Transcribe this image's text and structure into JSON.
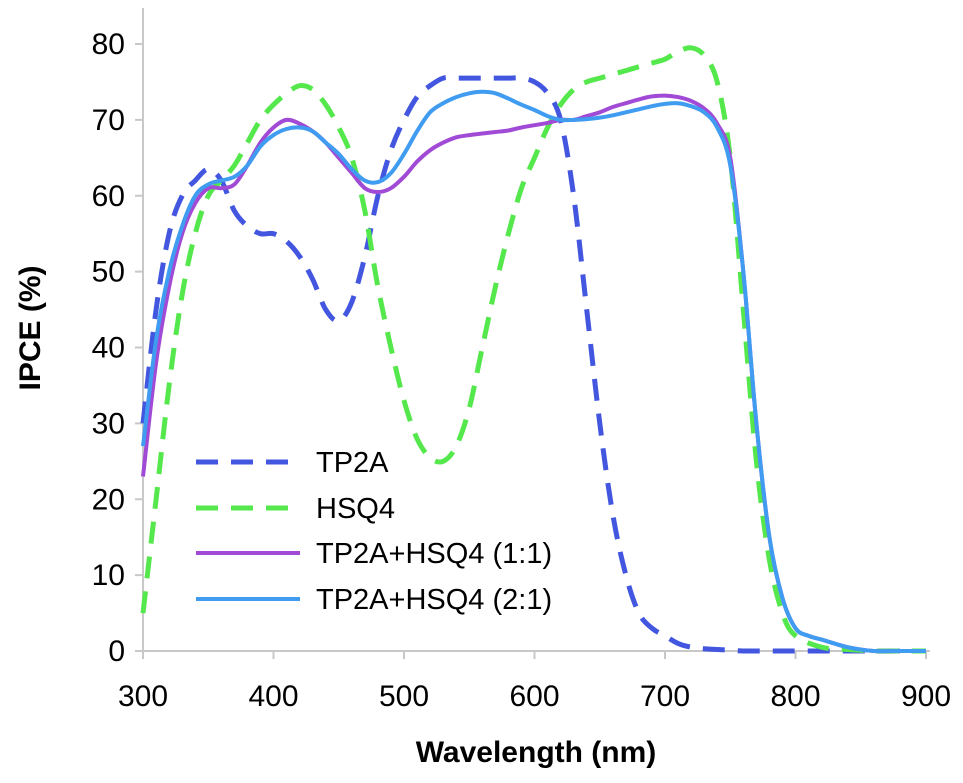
{
  "chart_data": {
    "type": "line",
    "xlabel": "Wavelength (nm)",
    "ylabel": "IPCE (%)",
    "xlim": [
      300,
      900
    ],
    "ylim": [
      0,
      80
    ],
    "xticks": [
      300,
      400,
      500,
      600,
      700,
      800,
      900
    ],
    "yticks": [
      0,
      10,
      20,
      30,
      40,
      50,
      60,
      70,
      80
    ],
    "grid": false,
    "legend_position": "bottom-left",
    "series": [
      {
        "name": "TP2A",
        "color": "#4356e0",
        "dash": "dashed",
        "x": [
          300,
          310,
          320,
          330,
          340,
          350,
          360,
          370,
          380,
          390,
          400,
          410,
          420,
          430,
          440,
          450,
          460,
          470,
          480,
          490,
          500,
          510,
          520,
          530,
          540,
          550,
          560,
          570,
          580,
          590,
          600,
          610,
          620,
          630,
          640,
          650,
          660,
          670,
          680,
          690,
          700,
          710,
          720,
          730,
          740,
          750,
          760,
          770,
          780,
          790,
          800,
          820,
          840,
          860,
          880,
          900
        ],
        "y": [
          30,
          45,
          55,
          60,
          62,
          63.5,
          62,
          58,
          56,
          55,
          55,
          54,
          52,
          49,
          45,
          43.5,
          46,
          52,
          60,
          66,
          70,
          73,
          74.5,
          75.5,
          75.5,
          75.5,
          75.5,
          75.5,
          75.5,
          75.5,
          75,
          73.5,
          70,
          60,
          45,
          30,
          18,
          10,
          5,
          3,
          2,
          1,
          0.5,
          0.3,
          0.2,
          0.1,
          0,
          0,
          0,
          0,
          0,
          0,
          0,
          0,
          0,
          0
        ]
      },
      {
        "name": "HSQ4",
        "color": "#55e84c",
        "dash": "dashed",
        "x": [
          300,
          310,
          320,
          330,
          340,
          350,
          360,
          370,
          380,
          390,
          400,
          410,
          420,
          430,
          440,
          450,
          460,
          470,
          480,
          490,
          500,
          510,
          520,
          530,
          540,
          550,
          560,
          570,
          580,
          590,
          600,
          610,
          620,
          630,
          640,
          650,
          660,
          670,
          680,
          690,
          700,
          710,
          720,
          730,
          740,
          750,
          760,
          770,
          780,
          790,
          800,
          820,
          840,
          860,
          880,
          900
        ],
        "y": [
          5,
          20,
          35,
          47,
          55,
          60,
          62,
          64,
          67,
          70,
          72,
          73.5,
          74.5,
          74,
          72,
          69,
          65,
          58,
          48,
          40,
          33,
          28,
          25.5,
          25,
          27,
          32,
          40,
          48,
          55,
          61,
          65,
          69,
          72,
          74,
          75,
          75.5,
          76,
          76.5,
          77,
          77.5,
          78,
          79,
          79.5,
          78.5,
          75,
          65,
          45,
          25,
          12,
          5,
          2,
          0.5,
          0.2,
          0,
          0,
          0
        ]
      },
      {
        "name": "TP2A+HSQ4 (1:1)",
        "color": "#a04ad6",
        "dash": "solid",
        "x": [
          300,
          310,
          320,
          330,
          340,
          350,
          360,
          370,
          380,
          390,
          400,
          410,
          420,
          430,
          440,
          450,
          460,
          470,
          480,
          490,
          500,
          510,
          520,
          530,
          540,
          550,
          560,
          570,
          580,
          590,
          600,
          610,
          620,
          630,
          640,
          650,
          660,
          670,
          680,
          690,
          700,
          710,
          720,
          730,
          740,
          750,
          760,
          770,
          780,
          790,
          800,
          810,
          820,
          840,
          860,
          880,
          900
        ],
        "y": [
          23,
          38,
          48,
          55,
          59,
          61,
          61,
          61.5,
          64,
          67,
          69,
          70,
          69.5,
          68.5,
          67,
          65,
          63,
          61,
          60.5,
          61,
          62.5,
          64.5,
          66,
          67,
          67.7,
          68,
          68.2,
          68.4,
          68.6,
          69,
          69.3,
          69.6,
          70,
          70,
          70.5,
          71,
          71.7,
          72.2,
          72.7,
          73.1,
          73.2,
          73,
          72.5,
          71.5,
          69.5,
          65,
          50,
          30,
          15,
          7,
          3,
          2,
          1.5,
          0.5,
          0,
          0,
          0
        ]
      },
      {
        "name": "TP2A+HSQ4 (2:1)",
        "color": "#3f9cf0",
        "dash": "solid",
        "x": [
          300,
          310,
          320,
          330,
          340,
          350,
          360,
          370,
          380,
          390,
          400,
          410,
          420,
          430,
          440,
          450,
          460,
          470,
          480,
          490,
          500,
          510,
          520,
          530,
          540,
          550,
          560,
          570,
          580,
          590,
          600,
          610,
          620,
          630,
          640,
          650,
          660,
          670,
          680,
          690,
          700,
          710,
          720,
          730,
          740,
          750,
          760,
          770,
          780,
          790,
          800,
          810,
          820,
          840,
          860,
          880,
          900
        ],
        "y": [
          27,
          41,
          50,
          56,
          60,
          61.5,
          62,
          62.5,
          64,
          66.5,
          68,
          68.8,
          69,
          68.5,
          67,
          65.5,
          63.5,
          62,
          61.8,
          63,
          65.5,
          68.5,
          71,
          72.2,
          73,
          73.5,
          73.7,
          73.5,
          72.8,
          72,
          71.3,
          70.5,
          70,
          70,
          70.1,
          70.3,
          70.6,
          71,
          71.4,
          71.8,
          72.1,
          72.2,
          71.8,
          71,
          69,
          64,
          50,
          30,
          15,
          7,
          3,
          2,
          1.5,
          0.5,
          0,
          0,
          0
        ]
      }
    ]
  }
}
